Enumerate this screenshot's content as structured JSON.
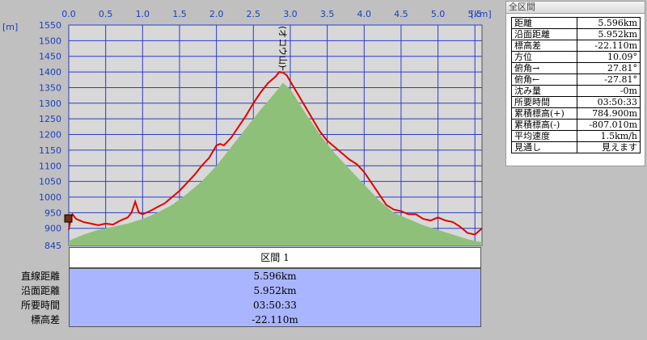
{
  "chart_data": {
    "type": "area",
    "xlabel": "",
    "ylabel": "",
    "x_unit": "[km]",
    "y_unit": "[m]",
    "xlim": [
      0,
      5.596
    ],
    "ylim": [
      845,
      1550
    ],
    "x_ticks": [
      0.0,
      0.5,
      1.0,
      1.5,
      2.0,
      2.5,
      3.0,
      3.5,
      4.0,
      4.5,
      5.0,
      5.5
    ],
    "x_tick_labels": [
      "0.0",
      "0.5",
      "1.0",
      "1.5",
      "2.0",
      "2.5",
      "3.0",
      "3.5",
      "4.0",
      "4.5",
      "5.0",
      "5.5"
    ],
    "y_ticks": [
      845,
      900,
      950,
      1000,
      1050,
      1100,
      1150,
      1200,
      1250,
      1300,
      1350,
      1400,
      1450,
      1500,
      1550
    ],
    "y_tick_labels": [
      "845",
      "900",
      "950",
      "1000",
      "1050",
      "1100",
      "1150",
      "1200",
      "1250",
      "1300",
      "1350",
      "1400",
      "1450",
      "1500",
      "1550"
    ],
    "grid": true,
    "peak_label": "(オコウ山)",
    "peak_x": 2.9,
    "series": [
      {
        "style": "line",
        "color": "#e00000",
        "x": [
          0.0,
          0.03,
          0.05,
          0.1,
          0.2,
          0.3,
          0.4,
          0.5,
          0.6,
          0.7,
          0.8,
          0.85,
          0.9,
          0.95,
          1.0,
          1.1,
          1.2,
          1.3,
          1.4,
          1.5,
          1.6,
          1.7,
          1.8,
          1.9,
          2.0,
          2.05,
          2.1,
          2.2,
          2.3,
          2.4,
          2.5,
          2.6,
          2.7,
          2.8,
          2.85,
          2.9,
          2.95,
          3.0,
          3.1,
          3.2,
          3.3,
          3.4,
          3.5,
          3.6,
          3.7,
          3.8,
          3.9,
          4.0,
          4.1,
          4.2,
          4.3,
          4.4,
          4.5,
          4.6,
          4.7,
          4.8,
          4.9,
          5.0,
          5.1,
          5.2,
          5.3,
          5.4,
          5.5,
          5.596
        ],
        "y": [
          895,
          935,
          945,
          930,
          920,
          915,
          910,
          915,
          912,
          925,
          935,
          950,
          985,
          950,
          945,
          955,
          968,
          980,
          1000,
          1020,
          1045,
          1070,
          1100,
          1125,
          1165,
          1170,
          1165,
          1190,
          1225,
          1260,
          1300,
          1335,
          1365,
          1385,
          1400,
          1398,
          1390,
          1370,
          1330,
          1290,
          1250,
          1210,
          1180,
          1160,
          1140,
          1120,
          1105,
          1080,
          1045,
          1010,
          975,
          960,
          955,
          945,
          945,
          930,
          925,
          935,
          925,
          920,
          905,
          885,
          880,
          900
        ]
      },
      {
        "style": "area",
        "color": "#8fc07a",
        "x": [
          0.0,
          0.2,
          0.4,
          0.6,
          0.8,
          1.0,
          1.2,
          1.4,
          1.6,
          1.8,
          2.0,
          2.2,
          2.4,
          2.6,
          2.8,
          2.9,
          3.0,
          3.2,
          3.4,
          3.6,
          3.8,
          4.0,
          4.2,
          4.4,
          4.6,
          4.8,
          5.0,
          5.2,
          5.4,
          5.596
        ],
        "y": [
          860,
          880,
          895,
          905,
          915,
          930,
          950,
          975,
          1010,
          1050,
          1100,
          1160,
          1220,
          1280,
          1335,
          1365,
          1345,
          1270,
          1200,
          1140,
          1090,
          1040,
          990,
          950,
          930,
          910,
          895,
          880,
          865,
          855
        ]
      }
    ]
  },
  "info_panel": {
    "title": "全区間",
    "rows": [
      {
        "label": "距離",
        "value": "5.596km"
      },
      {
        "label": "沿面距離",
        "value": "5.952km"
      },
      {
        "label": "標高差",
        "value": "-22.110m"
      },
      {
        "label": "方位",
        "value": "10.09°"
      },
      {
        "label": "俯角→",
        "value": "27.81°"
      },
      {
        "label": "俯角←",
        "value": "-27.81°"
      },
      {
        "label": "沈み量",
        "value": "-0m"
      },
      {
        "label": "所要時間",
        "value": "03:50:33"
      },
      {
        "label": "累積標高(+)",
        "value": "784.900m"
      },
      {
        "label": "累積標高(-)",
        "value": "-807.010m"
      },
      {
        "label": "平均速度",
        "value": "1.5km/h"
      },
      {
        "label": "見通し",
        "value": "見えます"
      }
    ]
  },
  "section": {
    "header": "区間 1",
    "stats": [
      {
        "label": "直線距離",
        "value": "5.596km"
      },
      {
        "label": "沿面距離",
        "value": "5.952km"
      },
      {
        "label": "所要時間",
        "value": "03:50:33"
      },
      {
        "label": "標高差",
        "value": "-22.110m"
      }
    ]
  }
}
